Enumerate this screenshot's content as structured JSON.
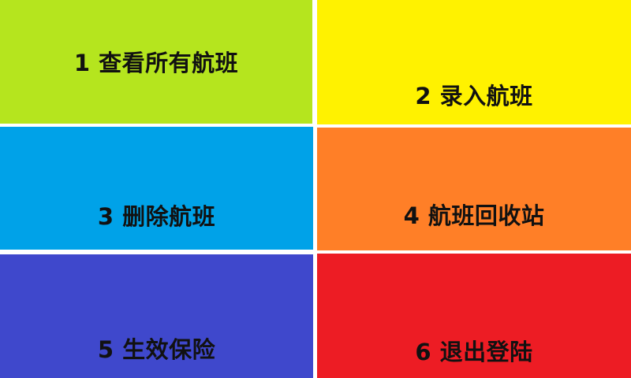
{
  "menu": {
    "tiles": [
      {
        "label": "1 查看所有航班",
        "color": "#b5e51e"
      },
      {
        "label": "2 录入航班",
        "color": "#fff200"
      },
      {
        "label": "3 删除航班",
        "color": "#00a2e8"
      },
      {
        "label": "4 航班回收站",
        "color": "#ff7f27"
      },
      {
        "label": "5 生效保险",
        "color": "#3f48cc"
      },
      {
        "label": "6 退出登陆",
        "color": "#ed1c24"
      }
    ]
  }
}
